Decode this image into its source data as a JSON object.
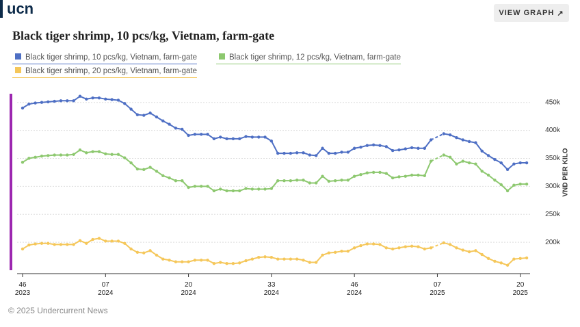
{
  "logo": "ucn",
  "button": "VIEW GRAPH",
  "footer": "© 2025 Undercurrent News",
  "chart_data": {
    "type": "line",
    "title": "Black tiger shrimp, 10 pcs/kg, Vietnam, farm-gate",
    "y_label": "VND PER KILO",
    "categories": [
      "46\n2023",
      null,
      null,
      null,
      null,
      null,
      null,
      null,
      null,
      null,
      null,
      null,
      null,
      "07\n2024",
      null,
      null,
      null,
      null,
      null,
      null,
      null,
      null,
      null,
      null,
      null,
      null,
      "20\n2024",
      null,
      null,
      null,
      null,
      null,
      null,
      null,
      null,
      null,
      null,
      null,
      null,
      "33\n2024",
      null,
      null,
      null,
      null,
      null,
      null,
      null,
      null,
      null,
      null,
      null,
      null,
      "46\n2024",
      null,
      null,
      null,
      null,
      null,
      null,
      null,
      null,
      null,
      null,
      null,
      null,
      "07\n2025",
      null,
      null,
      null,
      null,
      null,
      null,
      null,
      null,
      null,
      null,
      null,
      null,
      "20\n2025",
      null
    ],
    "ylim": [
      150000,
      468000
    ],
    "yticks": [
      {
        "value": 200000,
        "label": "200k"
      },
      {
        "value": 250000,
        "label": "250k"
      },
      {
        "value": 300000,
        "label": "300k"
      },
      {
        "value": 350000,
        "label": "350k"
      },
      {
        "value": 400000,
        "label": "400k"
      },
      {
        "value": 450000,
        "label": "450k"
      }
    ],
    "grid": true,
    "series": [
      {
        "name": "Black tiger shrimp, 10 pcs/kg, Vietnam, farm-gate",
        "color": "#4e6fc4",
        "values": [
          440000,
          447000,
          449000,
          450000,
          451000,
          452000,
          453000,
          453000,
          453000,
          461000,
          456000,
          458000,
          458000,
          456000,
          455000,
          454000,
          448000,
          438000,
          428000,
          427000,
          431000,
          424000,
          417000,
          411000,
          404000,
          402000,
          391000,
          393000,
          393000,
          393000,
          385000,
          388000,
          385000,
          385000,
          385000,
          389000,
          388000,
          388000,
          388000,
          381000,
          359000,
          359000,
          359000,
          360000,
          360000,
          356000,
          355000,
          368000,
          359000,
          359000,
          361000,
          361000,
          368000,
          370000,
          373000,
          374000,
          373000,
          371000,
          364000,
          365000,
          367000,
          369000,
          368000,
          368000,
          383000,
          null,
          394000,
          392000,
          387000,
          383000,
          380000,
          378000,
          363000,
          355000,
          348000,
          342000,
          330000,
          340000,
          342000,
          342000
        ]
      },
      {
        "name": "Black tiger shrimp, 12 pcs/kg, Vietnam, farm-gate",
        "color": "#8dc86f",
        "values": [
          343000,
          350000,
          352000,
          354000,
          355000,
          356000,
          356000,
          356000,
          357000,
          365000,
          360000,
          362000,
          362000,
          358000,
          357000,
          357000,
          351000,
          342000,
          331000,
          330000,
          334000,
          327000,
          319000,
          315000,
          310000,
          310000,
          298000,
          300000,
          300000,
          300000,
          292000,
          295000,
          292000,
          292000,
          292000,
          296000,
          295000,
          295000,
          295000,
          296000,
          310000,
          310000,
          310000,
          311000,
          311000,
          306000,
          306000,
          318000,
          309000,
          310000,
          311000,
          311000,
          318000,
          321000,
          324000,
          325000,
          325000,
          323000,
          315000,
          317000,
          318000,
          320000,
          320000,
          319000,
          345000,
          null,
          356000,
          352000,
          340000,
          345000,
          342000,
          340000,
          327000,
          320000,
          311000,
          303000,
          292000,
          302000,
          304000,
          304000
        ]
      },
      {
        "name": "Black tiger shrimp, 20 pcs/kg, Vietnam, farm-gate",
        "color": "#f5c75a",
        "values": [
          188000,
          195000,
          197000,
          198000,
          198000,
          196000,
          196000,
          196000,
          196000,
          203000,
          198000,
          205000,
          207000,
          202000,
          202000,
          202000,
          198000,
          188000,
          182000,
          181000,
          185000,
          177000,
          170000,
          168000,
          165000,
          165000,
          165000,
          168000,
          168000,
          168000,
          162000,
          164000,
          162000,
          162000,
          163000,
          167000,
          170000,
          173000,
          174000,
          173000,
          170000,
          170000,
          170000,
          170000,
          168000,
          164000,
          164000,
          177000,
          181000,
          182000,
          184000,
          184000,
          190000,
          194000,
          197000,
          197000,
          196000,
          190000,
          188000,
          190000,
          192000,
          193000,
          192000,
          188000,
          190000,
          null,
          199000,
          196000,
          190000,
          186000,
          183000,
          185000,
          178000,
          171000,
          166000,
          163000,
          159000,
          170000,
          171000,
          172000
        ]
      }
    ]
  }
}
